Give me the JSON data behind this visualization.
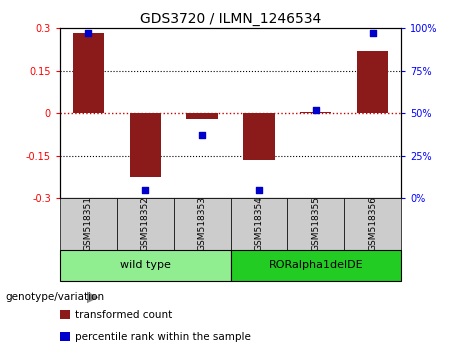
{
  "title": "GDS3720 / ILMN_1246534",
  "samples": [
    "GSM518351",
    "GSM518352",
    "GSM518353",
    "GSM518354",
    "GSM518355",
    "GSM518356"
  ],
  "bar_values": [
    0.285,
    -0.225,
    -0.02,
    -0.165,
    0.005,
    0.22
  ],
  "percentile_values": [
    97,
    5,
    37,
    5,
    52,
    97
  ],
  "ylim_left": [
    -0.3,
    0.3
  ],
  "ylim_right": [
    0,
    100
  ],
  "yticks_left": [
    -0.3,
    -0.15,
    0,
    0.15,
    0.3
  ],
  "yticks_right": [
    0,
    25,
    50,
    75,
    100
  ],
  "bar_color": "#8B1A1A",
  "percentile_color": "#0000CC",
  "zero_line_color": "#CC0000",
  "hline_color": "#000000",
  "groups": [
    {
      "label": "wild type",
      "indices": [
        0,
        1,
        2
      ],
      "color": "#90EE90"
    },
    {
      "label": "RORalpha1delDE",
      "indices": [
        3,
        4,
        5
      ],
      "color": "#22CC22"
    }
  ],
  "group_label": "genotype/variation",
  "legend_bar_label": "transformed count",
  "legend_pct_label": "percentile rank within the sample",
  "title_fontsize": 10,
  "axis_tick_fontsize": 7,
  "sample_label_fontsize": 6.5,
  "group_fontsize": 8,
  "legend_fontsize": 7.5,
  "genotype_fontsize": 7.5
}
